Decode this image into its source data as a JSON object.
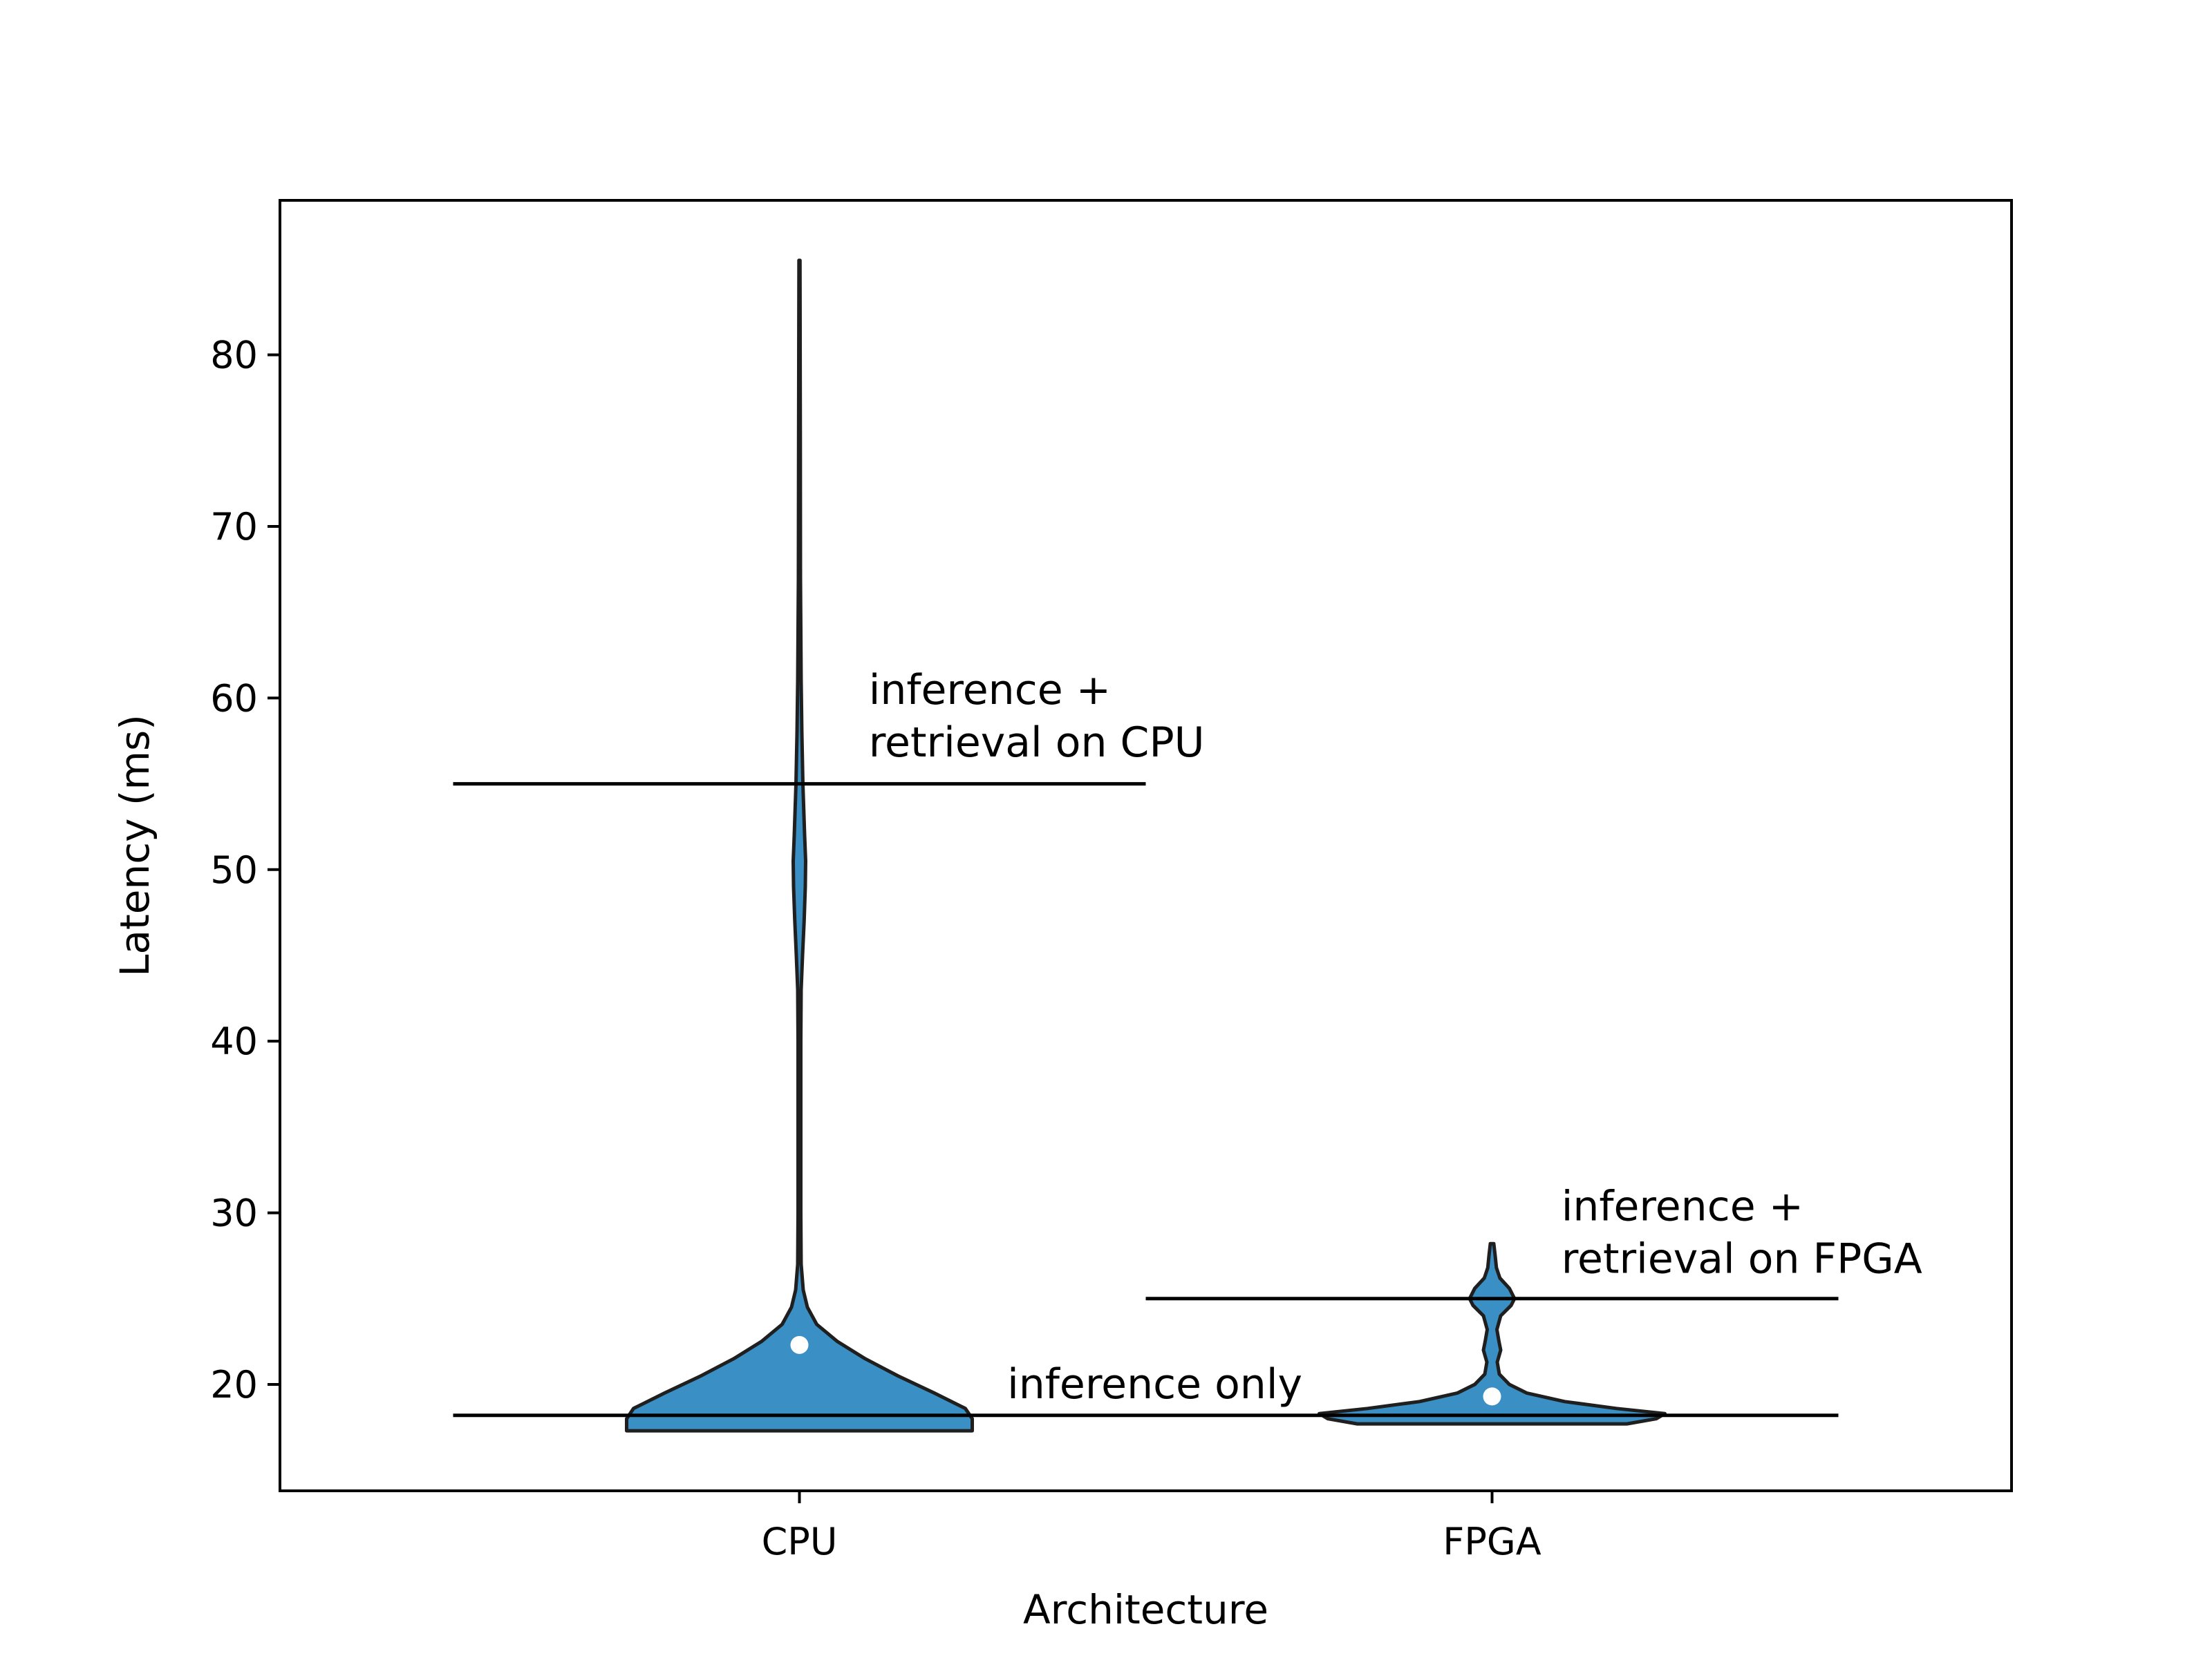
{
  "chart_data": {
    "type": "violin",
    "title": "",
    "xlabel": "Architecture",
    "ylabel": "Latency (ms)",
    "categories": [
      "CPU",
      "FPGA"
    ],
    "ylim": [
      13.8,
      89.0
    ],
    "yticks": [
      20,
      30,
      40,
      50,
      60,
      70,
      80
    ],
    "grid": false,
    "colors": {
      "violin_fill": "#3a8fc4",
      "violin_edge": "#1f1f1f",
      "median_dot": "#ffffff",
      "reference_line": "#000000"
    },
    "series": [
      {
        "category": "CPU",
        "min": 17.3,
        "max": 85.5,
        "median": 22.3,
        "density_profile": [
          [
            17.3,
            1.0
          ],
          [
            18.0,
            1.0
          ],
          [
            18.6,
            0.96
          ],
          [
            19.5,
            0.78
          ],
          [
            20.5,
            0.57
          ],
          [
            21.5,
            0.38
          ],
          [
            22.5,
            0.22
          ],
          [
            23.5,
            0.1
          ],
          [
            24.5,
            0.046
          ],
          [
            25.5,
            0.022
          ],
          [
            27,
            0.01
          ],
          [
            30,
            0.008
          ],
          [
            40,
            0.008
          ],
          [
            43,
            0.01
          ],
          [
            45,
            0.018
          ],
          [
            47,
            0.027
          ],
          [
            49,
            0.034
          ],
          [
            50.5,
            0.036
          ],
          [
            52,
            0.03
          ],
          [
            55,
            0.02
          ],
          [
            58,
            0.014
          ],
          [
            61,
            0.01
          ],
          [
            64,
            0.008
          ],
          [
            67,
            0.006
          ],
          [
            75,
            0.005
          ],
          [
            85.5,
            0.003
          ]
        ]
      },
      {
        "category": "FPGA",
        "min": 17.7,
        "max": 28.2,
        "median": 19.3,
        "density_profile": [
          [
            17.7,
            0.78
          ],
          [
            18.0,
            0.95
          ],
          [
            18.3,
            1.0
          ],
          [
            18.6,
            0.72
          ],
          [
            19.0,
            0.42
          ],
          [
            19.5,
            0.2
          ],
          [
            20.0,
            0.1
          ],
          [
            20.6,
            0.042
          ],
          [
            21.3,
            0.03
          ],
          [
            22.0,
            0.05
          ],
          [
            22.5,
            0.04
          ],
          [
            23.2,
            0.028
          ],
          [
            24.0,
            0.05
          ],
          [
            24.6,
            0.11
          ],
          [
            25.0,
            0.13
          ],
          [
            25.6,
            0.1
          ],
          [
            26.2,
            0.045
          ],
          [
            26.8,
            0.025
          ],
          [
            27.5,
            0.018
          ],
          [
            28.2,
            0.01
          ]
        ]
      }
    ],
    "reference_lines": [
      {
        "label": "inference only",
        "y": 18.2,
        "x_range": [
          -0.5,
          1.5
        ]
      },
      {
        "label": "inference + retrieval on CPU",
        "y": 55,
        "x_range": [
          -0.5,
          0.5
        ]
      },
      {
        "label": "inference + retrieval on FPGA",
        "y": 25,
        "x_range": [
          0.5,
          1.5
        ]
      }
    ],
    "annotations": [
      {
        "lines": [
          "inference only"
        ],
        "x": 0.3,
        "y": 19.2
      },
      {
        "lines": [
          "inference +",
          "retrieval on CPU"
        ],
        "x": 0.1,
        "y": 56.6
      },
      {
        "lines": [
          "inference +",
          "retrieval on FPGA"
        ],
        "x": 1.1,
        "y": 26.5
      }
    ]
  }
}
